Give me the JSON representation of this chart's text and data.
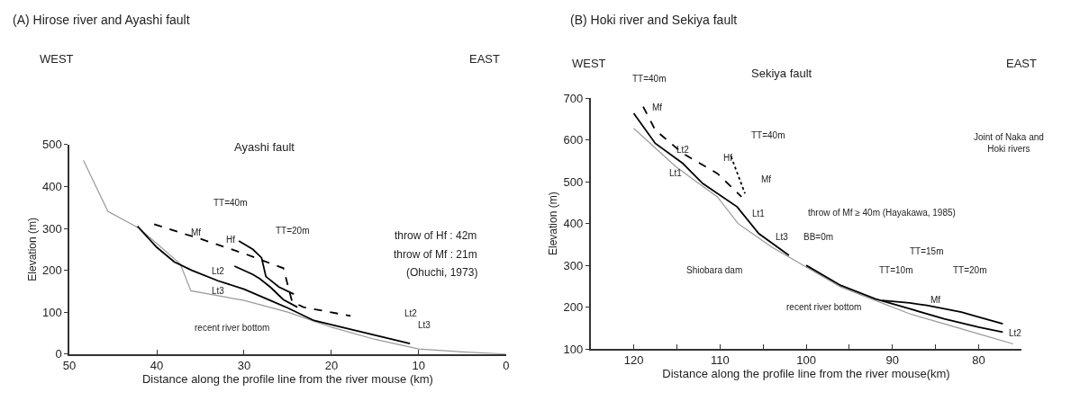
{
  "chart_data": [
    {
      "type": "line",
      "title": "(A) Hirose river and Ayashi fault",
      "xlabel": "Distance along the profile line from the river mouse (km)",
      "ylabel": "Elevation (m)",
      "xlim": [
        50,
        0
      ],
      "xticks": [
        50,
        40,
        30,
        20,
        10,
        0
      ],
      "ylim": [
        0,
        500
      ],
      "yticks": [
        0,
        100,
        200,
        300,
        400,
        500
      ],
      "series": [
        {
          "color": "#999999",
          "line_style": "solid",
          "x": [
            48.4,
            45.6,
            42,
            37.3,
            36.1,
            30,
            25,
            20,
            15,
            10,
            5,
            0
          ],
          "values": [
            463,
            341,
            300,
            215,
            151,
            128,
            100,
            64,
            35,
            12,
            5,
            0
          ]
        },
        {
          "color": "#000000",
          "line_style": "solid",
          "x": [
            42.2,
            40,
            38,
            36,
            33,
            30,
            27,
            25,
            22,
            20,
            17,
            14,
            11
          ],
          "values": [
            305,
            255,
            220,
            200,
            175,
            155,
            128,
            110,
            80,
            70,
            55,
            40,
            25
          ]
        },
        {
          "color": "#000000",
          "line_style": "solid",
          "x": [
            31.1,
            29,
            28.2,
            27,
            25.5,
            23.9
          ],
          "values": [
            210,
            190,
            180,
            160,
            130,
            112
          ]
        },
        {
          "color": "#000000",
          "line_style": "solid",
          "x": [
            30.6,
            29,
            28,
            27.5,
            26,
            24.3
          ],
          "values": [
            270,
            250,
            230,
            185,
            160,
            143
          ]
        },
        {
          "color": "#000000",
          "line_style": "dashed",
          "x": [
            40.3,
            35,
            30,
            25.5,
            24.5,
            23.2,
            17.8
          ],
          "values": [
            310,
            275,
            240,
            205,
            125,
            112,
            91
          ]
        }
      ],
      "annotations": [
        "WEST",
        "EAST",
        "Mf",
        "Hf",
        "Lt2",
        "Lt3",
        "TT=40m",
        "TT=20m",
        "Ayashi fault",
        "throw of Hf : 42m",
        "throw of Mf : 21m",
        "(Ohuchi, 1973)",
        "Lt2",
        "Lt3",
        "recent river bottom"
      ]
    },
    {
      "type": "line",
      "title": "(B) Hoki river and Sekiya fault",
      "xlabel": "Distance along the profile line from the river mouse(km)",
      "ylabel": "Elevation (m)",
      "xlim": [
        125,
        75
      ],
      "xticks": [
        120,
        {
          "value": 115,
          "label": null
        },
        110,
        {
          "value": 105,
          "label": null
        },
        100,
        {
          "value": 95,
          "label": null
        },
        90,
        {
          "value": 85,
          "label": null
        },
        80
      ],
      "ylim": [
        100,
        700
      ],
      "yticks": [
        100,
        200,
        300,
        400,
        500,
        600,
        700
      ],
      "series": [
        {
          "color": "#999999",
          "line_style": "solid",
          "x": [
            120,
            115.1,
            110.3,
            107.9,
            104,
            100,
            96,
            92,
            88,
            84,
            80,
            76
          ],
          "values": [
            628,
            536,
            464,
            400,
            344,
            296,
            248,
            216,
            184,
            160,
            136,
            112
          ]
        },
        {
          "color": "#000000",
          "line_style": "solid",
          "x": [
            120,
            117.5,
            114.3,
            112,
            108,
            105.5,
            102
          ],
          "values": [
            664,
            592,
            544,
            496,
            440,
            376,
            324
          ]
        },
        {
          "color": "#000000",
          "line_style": "solid",
          "x": [
            100,
            96,
            92,
            88,
            84,
            80,
            77.2
          ],
          "values": [
            300,
            252,
            220,
            196,
            172,
            152,
            140
          ]
        },
        {
          "color": "#000000",
          "line_style": "dashed",
          "x": [
            118.9,
            117.5,
            114.3,
            110.3,
            107.5
          ],
          "values": [
            680,
            624,
            568,
            520,
            464
          ]
        },
        {
          "color": "#000000",
          "line_style": "solid",
          "x": [
            91.2,
            88,
            86,
            84,
            82,
            80,
            77.2
          ],
          "values": [
            216,
            210,
            204,
            196,
            188,
            176,
            160
          ]
        },
        {
          "color": "#000000",
          "line_style": "dotted",
          "x": [
            108.7,
            107.1
          ],
          "values": [
            560,
            472
          ]
        }
      ],
      "annotations": [
        "WEST",
        "EAST",
        "Sekiya fault",
        "TT=40m",
        "Mf",
        "TT=40m",
        "Hf",
        "Lt2",
        "Lt1",
        "Mf",
        "Lt1",
        "throw of Mf ≥ 40m (Hayakawa, 1985)",
        "Lt3",
        "BB=0m",
        "Shiobara dam",
        "recent river bottom",
        "TT=15m",
        "TT=10m",
        "TT=20m",
        "Mf",
        "Lt2",
        "Joint of Naka and\nHoki rivers"
      ]
    }
  ]
}
